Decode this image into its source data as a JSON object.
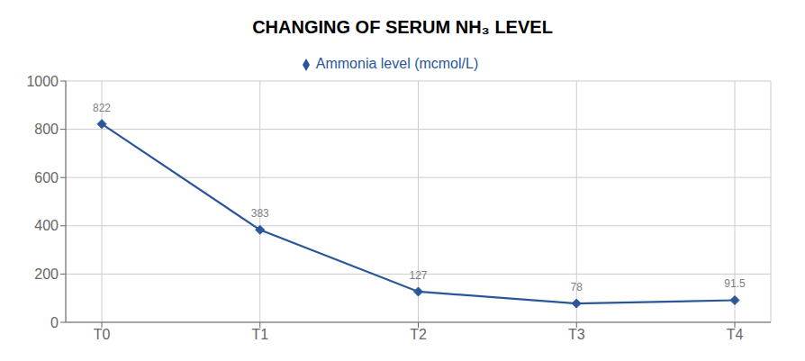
{
  "chart_data": {
    "type": "line",
    "title": "CHANGING OF SERUM NH₃ LEVEL",
    "categories": [
      "T0",
      "T1",
      "T2",
      "T3",
      "T4"
    ],
    "series": [
      {
        "name": "Ammonia level (mcmol/L)",
        "color": "#2B579A",
        "values": [
          822,
          383,
          127,
          78,
          91.5
        ],
        "marker": "diamond"
      }
    ],
    "ylim": [
      0,
      1000
    ],
    "yticks": [
      0,
      200,
      400,
      600,
      800,
      1000
    ],
    "grid": true,
    "legend": "top",
    "data_labels": true
  }
}
